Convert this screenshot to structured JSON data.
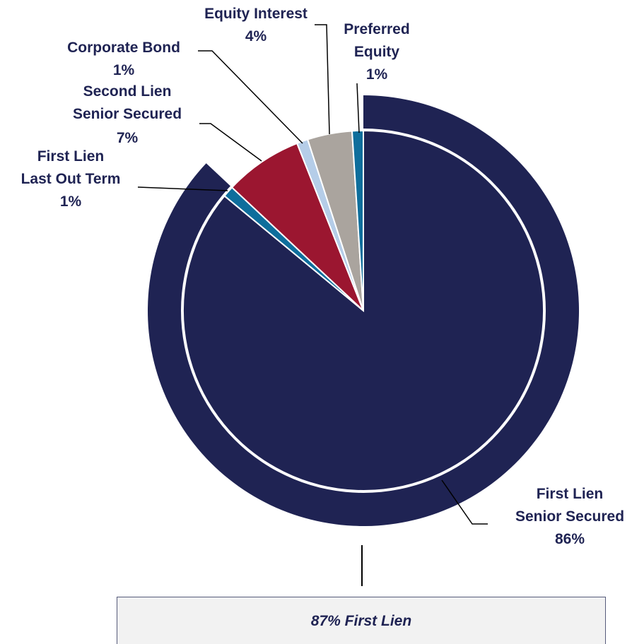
{
  "chart_data": {
    "type": "pie",
    "categories": [
      "First Lien\nSenior Secured",
      "First Lien\nLast Out Term",
      "Second Lien\nSenior Secured",
      "Corporate Bond",
      "Equity Interest",
      "Preferred\nEquity"
    ],
    "values": [
      86,
      1,
      7,
      1,
      4,
      1
    ],
    "value_labels": [
      "86%",
      "1%",
      "7%",
      "1%",
      "4%",
      "1%"
    ],
    "colors": [
      "#1f2353",
      "#0e6e9c",
      "#9b1630",
      "#b5cde8",
      "#aaa49e",
      "#0e6e9c"
    ],
    "annotation": "87% First Lien"
  }
}
